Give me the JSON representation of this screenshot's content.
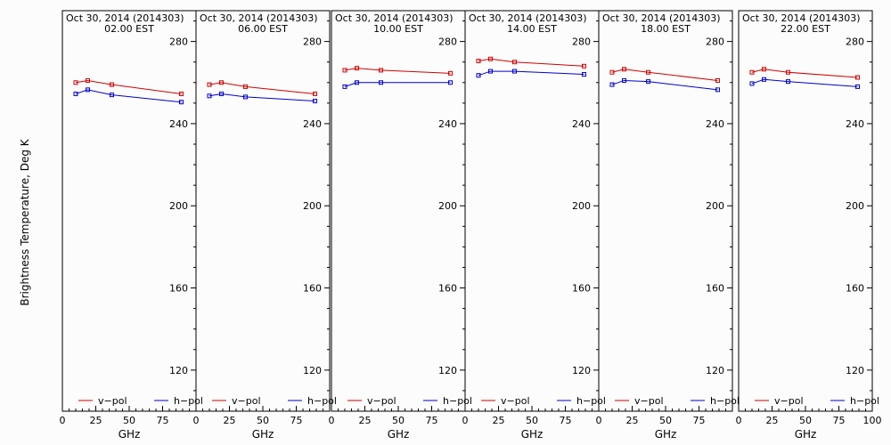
{
  "chart_data": {
    "type": "line",
    "ylabel": "Brightness Temperature, Deg K",
    "xlabel": "GHz",
    "xlim": [
      0,
      100
    ],
    "ylim": [
      100,
      295
    ],
    "x_ticks": [
      0,
      25,
      50,
      75
    ],
    "x_tick_labels": [
      "0",
      "25",
      "50",
      "75"
    ],
    "x_tick_labels_last_panel": [
      "0",
      "25",
      "50",
      "75",
      "100"
    ],
    "y_ticks": [
      120,
      160,
      200,
      240,
      280
    ],
    "y_tick_labels": [
      "120",
      "160",
      "200",
      "240",
      "280"
    ],
    "legend": [
      {
        "name": "v−pol",
        "color": "#d00000"
      },
      {
        "name": "h−pol",
        "color": "#0000d0"
      }
    ],
    "legend_placement": "bottom",
    "grid": false,
    "series_x": [
      10,
      19,
      37,
      89
    ],
    "panels": [
      {
        "title": "Oct 30, 2014 (2014303)",
        "subtitle": "02.00  EST",
        "series": [
          {
            "name": "v−pol",
            "values": [
              260.0,
              261.0,
              259.0,
              254.5
            ]
          },
          {
            "name": "h−pol",
            "values": [
              254.5,
              256.5,
              254.0,
              250.5
            ]
          }
        ]
      },
      {
        "title": "Oct 30, 2014 (2014303)",
        "subtitle": "06.00  EST",
        "series": [
          {
            "name": "v−pol",
            "values": [
              259.0,
              260.0,
              258.0,
              254.5
            ]
          },
          {
            "name": "h−pol",
            "values": [
              253.5,
              254.5,
              253.0,
              251.0
            ]
          }
        ]
      },
      {
        "title": "Oct 30, 2014 (2014303)",
        "subtitle": "10.00  EST",
        "series": [
          {
            "name": "v−pol",
            "values": [
              266.0,
              267.0,
              266.0,
              264.5
            ]
          },
          {
            "name": "h−pol",
            "values": [
              258.0,
              260.0,
              260.0,
              260.0
            ]
          }
        ]
      },
      {
        "title": "Oct 30, 2014 (2014303)",
        "subtitle": "14.00  EST",
        "series": [
          {
            "name": "v−pol",
            "values": [
              270.5,
              271.5,
              270.0,
              268.0
            ]
          },
          {
            "name": "h−pol",
            "values": [
              263.5,
              265.5,
              265.5,
              264.0
            ]
          }
        ]
      },
      {
        "title": "Oct 30, 2014 (2014303)",
        "subtitle": "18.00  EST",
        "series": [
          {
            "name": "v−pol",
            "values": [
              265.0,
              266.5,
              265.0,
              261.0
            ]
          },
          {
            "name": "h−pol",
            "values": [
              259.0,
              261.0,
              260.5,
              256.5
            ]
          }
        ]
      },
      {
        "title": "Oct 30, 2014 (2014303)",
        "subtitle": "22.00  EST",
        "series": [
          {
            "name": "v−pol",
            "values": [
              265.0,
              266.5,
              265.0,
              262.5
            ]
          },
          {
            "name": "h−pol",
            "values": [
              259.5,
              261.5,
              260.5,
              258.0
            ]
          }
        ]
      }
    ]
  }
}
